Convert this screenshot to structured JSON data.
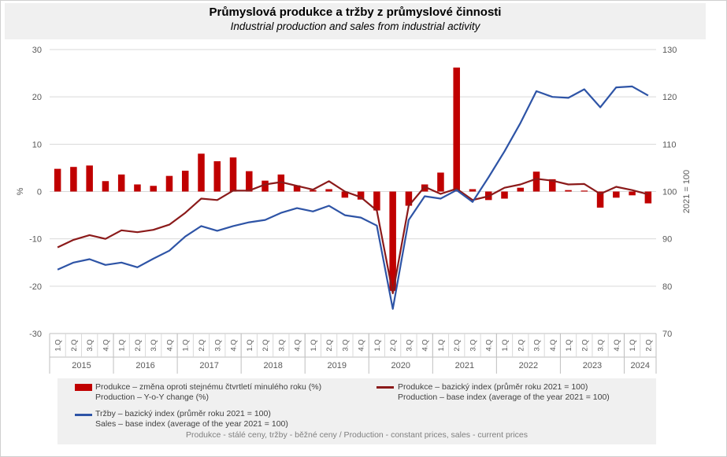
{
  "title": "Průmyslová produkce a tržby z průmyslové činnosti",
  "subtitle": "Industrial production and sales from industrial activity",
  "legend": {
    "bar_line1": "Produkce – změna oproti stejnému čtvrtletí minulého roku (%)",
    "bar_line2": "Production – Y-o-Y change (%)",
    "red_line1": "Produkce – bazický index (průměr roku 2021 = 100)",
    "red_line2": "Production – base index (average of the year 2021 = 100)",
    "blue_line1": "Tržby – bazický index (průměr roku 2021 = 100)",
    "blue_line2": "Sales – base index (average of the year 2021 = 100)"
  },
  "footnote": "Produkce - stálé ceny, tržby - běžné ceny / Production - constant prices, sales - current prices",
  "colors": {
    "bar": "#c00000",
    "production_line": "#8b1a1a",
    "sales_line": "#2e54a6",
    "grid": "#d9d9d9"
  },
  "chart_data": {
    "type": "bar",
    "title": "Průmyslová produkce a tržby z průmyslové činnosti",
    "subtitle": "Industrial production and sales from industrial activity",
    "ylabel": "%",
    "y2label": "2021 = 100",
    "ylim": [
      -30,
      30
    ],
    "y2lim": [
      70,
      130
    ],
    "yticks": [
      30,
      20,
      10,
      0,
      -10,
      -20,
      -30
    ],
    "y2ticks": [
      130,
      120,
      110,
      100,
      90,
      80,
      70
    ],
    "grid": true,
    "legend_position": "bottom",
    "quarters": [
      "1.Q",
      "2.Q",
      "3.Q",
      "4.Q",
      "1.Q",
      "2.Q",
      "3.Q",
      "4.Q",
      "1.Q",
      "2.Q",
      "3.Q",
      "4.Q",
      "1.Q",
      "2.Q",
      "3.Q",
      "4.Q",
      "1.Q",
      "2.Q",
      "3.Q",
      "4.Q",
      "1.Q",
      "2.Q",
      "3.Q",
      "4.Q",
      "1.Q",
      "2.Q",
      "3.Q",
      "4.Q",
      "1.Q",
      "2.Q",
      "3.Q",
      "4.Q",
      "1.Q",
      "2.Q",
      "3.Q",
      "4.Q",
      "1.Q",
      "2.Q"
    ],
    "years": [
      {
        "label": "2015",
        "count": 4
      },
      {
        "label": "2016",
        "count": 4
      },
      {
        "label": "2017",
        "count": 4
      },
      {
        "label": "2018",
        "count": 4
      },
      {
        "label": "2019",
        "count": 4
      },
      {
        "label": "2020",
        "count": 4
      },
      {
        "label": "2021",
        "count": 4
      },
      {
        "label": "2022",
        "count": 4
      },
      {
        "label": "2023",
        "count": 4
      },
      {
        "label": "2024",
        "count": 2
      }
    ],
    "series": [
      {
        "name": "Produkce – změna oproti stejnému čtvrtletí minulého roku (%)",
        "type": "bar",
        "axis": "left",
        "values": [
          4.8,
          5.2,
          5.5,
          2.2,
          3.6,
          1.5,
          1.2,
          3.3,
          4.4,
          8.0,
          6.4,
          7.2,
          4.3,
          2.3,
          3.6,
          1.3,
          0.3,
          0.5,
          -1.3,
          -1.7,
          -4.0,
          -21.0,
          -3.0,
          1.5,
          4.0,
          26.2,
          0.5,
          -1.8,
          -1.5,
          0.8,
          4.2,
          2.6,
          0.3,
          0.2,
          -3.4,
          -1.3,
          -0.8,
          -2.5
        ]
      },
      {
        "name": "Produkce – bazický index (průměr roku 2021 = 100)",
        "type": "line",
        "axis": "right",
        "values": [
          88.2,
          89.8,
          90.8,
          90.0,
          91.8,
          91.4,
          91.9,
          93.0,
          95.5,
          98.5,
          98.2,
          100.2,
          100.2,
          101.5,
          102.0,
          101.2,
          100.4,
          102.2,
          100.0,
          98.8,
          96.0,
          78.5,
          97.0,
          101.0,
          99.5,
          100.6,
          98.2,
          99.0,
          100.8,
          101.5,
          102.7,
          102.3,
          101.5,
          101.6,
          99.5,
          101.0,
          100.3,
          99.4
        ]
      },
      {
        "name": "Tržby – bazický index (průměr roku 2021 = 100)",
        "type": "line",
        "axis": "right",
        "values": [
          83.5,
          85.0,
          85.7,
          84.5,
          85.0,
          84.0,
          85.8,
          87.5,
          90.5,
          92.7,
          91.7,
          92.7,
          93.5,
          94.0,
          95.5,
          96.5,
          95.8,
          97.0,
          95.0,
          94.5,
          92.8,
          75.2,
          94.0,
          99.0,
          98.5,
          100.3,
          97.8,
          103.0,
          108.5,
          114.5,
          121.2,
          120.0,
          119.8,
          121.6,
          117.8,
          122.0,
          122.2,
          120.3
        ]
      }
    ]
  }
}
